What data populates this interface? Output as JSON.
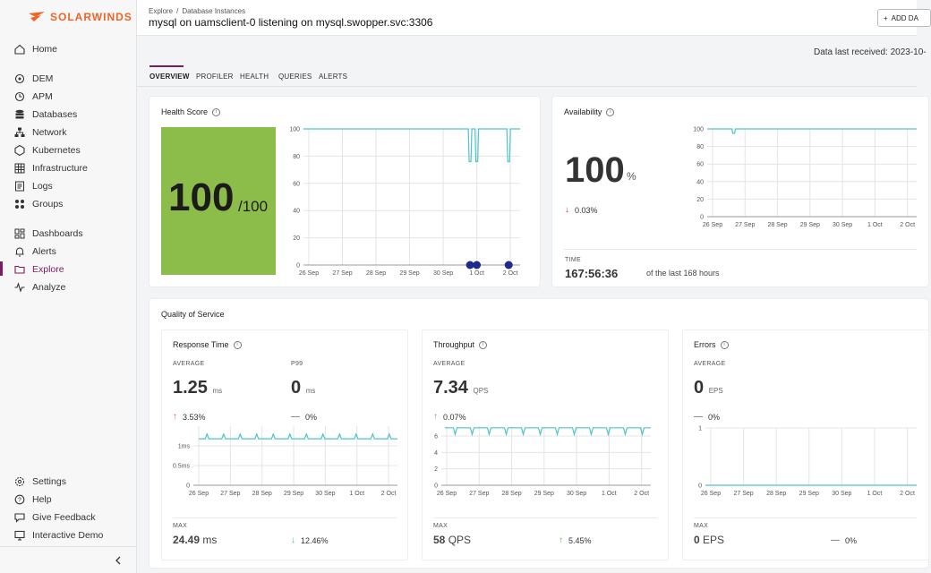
{
  "brand": {
    "name": "SOLARWINDS",
    "color": "#f26322"
  },
  "sidebar": {
    "items": [
      {
        "label": "Home",
        "icon": "home-icon"
      },
      {
        "label": "DEM",
        "icon": "dem-icon"
      },
      {
        "label": "APM",
        "icon": "apm-icon"
      },
      {
        "label": "Databases",
        "icon": "database-icon"
      },
      {
        "label": "Network",
        "icon": "network-icon"
      },
      {
        "label": "Kubernetes",
        "icon": "kubernetes-icon"
      },
      {
        "label": "Infrastructure",
        "icon": "infrastructure-icon"
      },
      {
        "label": "Logs",
        "icon": "logs-icon"
      },
      {
        "label": "Groups",
        "icon": "groups-icon"
      },
      {
        "label": "Dashboards",
        "icon": "dashboards-icon"
      },
      {
        "label": "Alerts",
        "icon": "bell-icon"
      },
      {
        "label": "Explore",
        "icon": "folder-icon"
      },
      {
        "label": "Analyze",
        "icon": "analyze-icon"
      }
    ],
    "footer": [
      {
        "label": "Settings",
        "icon": "gear-icon"
      },
      {
        "label": "Help",
        "icon": "help-icon"
      },
      {
        "label": "Give Feedback",
        "icon": "feedback-icon"
      },
      {
        "label": "Interactive Demo",
        "icon": "monitor-icon"
      }
    ],
    "active": "Explore",
    "collapse_icon": "chevron-left-icon"
  },
  "header": {
    "breadcrumb": [
      "Explore",
      "/",
      "Database Instances"
    ],
    "title": "mysql on uamsclient-0 listening on mysql.swopper.svc:3306",
    "add_button": "ADD DA",
    "data_received": "Data last received: 2023-10-"
  },
  "tabs": [
    "OVERVIEW",
    "PROFILER",
    "HEALTH",
    "QUERIES",
    "ALERTS"
  ],
  "active_tab": "OVERVIEW",
  "health_score": {
    "title": "Health Score",
    "value": "100",
    "max": "/100",
    "color": "#8cbc4a",
    "chart_data": {
      "type": "line",
      "x": [
        "26 Sep",
        "27 Sep",
        "28 Sep",
        "29 Sep",
        "30 Sep",
        "1 Oct",
        "2 Oct"
      ],
      "yticks": [
        "0",
        "20",
        "40",
        "60",
        "80",
        "100"
      ],
      "ylim": [
        0,
        100
      ],
      "dips": [
        {
          "at": 4.8,
          "to": 76
        },
        {
          "at": 5.0,
          "to": 76
        },
        {
          "at": 5.95,
          "to": 76
        }
      ],
      "events": [
        4.8,
        5.0,
        5.95
      ],
      "baseline": 100
    }
  },
  "availability": {
    "title": "Availability",
    "value": "100",
    "unit": "%",
    "change": "0.03%",
    "time_label": "TIME",
    "time_value": "167:56:36",
    "time_desc": "of the last 168 hours",
    "chart_data": {
      "type": "line",
      "x": [
        "26 Sep",
        "27 Sep",
        "28 Sep",
        "29 Sep",
        "30 Sep",
        "1 Oct",
        "2 Oct"
      ],
      "yticks": [
        "0",
        "20",
        "40",
        "60",
        "80",
        "100"
      ],
      "ylim": [
        0,
        100
      ],
      "dips": [
        {
          "at": 0.65,
          "to": 95
        }
      ],
      "baseline": 100
    }
  },
  "qos": {
    "title": "Quality of Service",
    "response_time": {
      "title": "Response Time",
      "avg_label": "AVERAGE",
      "avg_value": "1.25",
      "avg_unit": "ms",
      "p99_label": "P99",
      "p99_value": "0",
      "p99_unit": "ms",
      "avg_change": "3.53%",
      "p99_change": "0%",
      "max_label": "MAX",
      "max_value": "24.49",
      "max_unit": "ms",
      "max_change": "12.46%",
      "chart_data": {
        "type": "line",
        "x": [
          "26 Sep",
          "27 Sep",
          "28 Sep",
          "29 Sep",
          "30 Sep",
          "1 Oct",
          "2 Oct"
        ],
        "yticks": [
          "0",
          "0.5ms",
          "1ms"
        ],
        "ylim": [
          0,
          1.5
        ],
        "baseline": 1.18,
        "spike": 1.3
      }
    },
    "throughput": {
      "title": "Throughput",
      "avg_label": "AVERAGE",
      "avg_value": "7.34",
      "avg_unit": "QPS",
      "avg_change": "0.07%",
      "max_label": "MAX",
      "max_value": "58",
      "max_unit": "QPS",
      "max_change": "5.45%",
      "chart_data": {
        "type": "line",
        "x": [
          "26 Sep",
          "27 Sep",
          "28 Sep",
          "29 Sep",
          "30 Sep",
          "1 Oct",
          "2 Oct"
        ],
        "yticks": [
          "0",
          "2",
          "4",
          "6"
        ],
        "ylim": [
          0,
          7.2
        ],
        "baseline": 7,
        "dip": 6.2
      }
    },
    "errors": {
      "title": "Errors",
      "avg_label": "AVERAGE",
      "avg_value": "0",
      "avg_unit": "EPS",
      "avg_change": "0%",
      "max_label": "MAX",
      "max_value": "0",
      "max_unit": "EPS",
      "max_change": "0%",
      "chart_data": {
        "type": "line",
        "x": [
          "26 Sep",
          "27 Sep",
          "28 Sep",
          "29 Sep",
          "30 Sep",
          "1 Oct",
          "2 Oct"
        ],
        "yticks": [
          "0",
          "1"
        ],
        "ylim": [
          0,
          1
        ],
        "baseline": 0
      }
    }
  },
  "colors": {
    "line": "#4fc3c7",
    "event": "#1f2a8a",
    "accent": "#7b1c5e"
  }
}
